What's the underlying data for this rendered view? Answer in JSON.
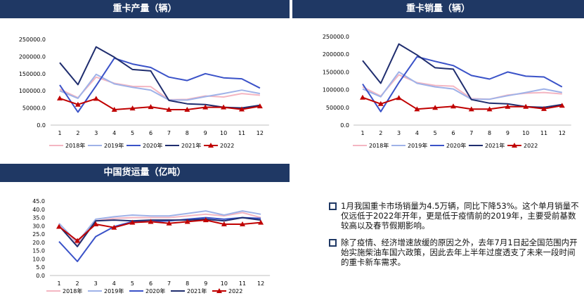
{
  "colors": {
    "2018年": "#f4b6c2",
    "2019年": "#9fb2e8",
    "2020年": "#3a52c8",
    "2021年": "#1f2d6e",
    "2022": "#c00000"
  },
  "chart_data": [
    {
      "type": "line",
      "title": "重卡产量（辆）",
      "categories": [
        "1",
        "2",
        "3",
        "4",
        "5",
        "6",
        "7",
        "8",
        "9",
        "10",
        "11",
        "12"
      ],
      "ylim": [
        0,
        250000
      ],
      "yticks": [
        "0.0",
        "50000.0",
        "100000.0",
        "150000.0",
        "200000.0",
        "250000.0"
      ],
      "series": [
        {
          "name": "2018年",
          "values": [
            105000,
            80000,
            140000,
            122000,
            113000,
            112000,
            74000,
            75000,
            85000,
            82000,
            92000,
            87000
          ]
        },
        {
          "name": "2019年",
          "values": [
            100000,
            78000,
            148000,
            120000,
            110000,
            102000,
            73000,
            73000,
            83000,
            92000,
            102000,
            92000
          ]
        },
        {
          "name": "2020年",
          "values": [
            117000,
            38000,
            115000,
            195000,
            178000,
            168000,
            140000,
            130000,
            150000,
            138000,
            135000,
            108000
          ]
        },
        {
          "name": "2021年",
          "values": [
            182000,
            118000,
            228000,
            198000,
            162000,
            158000,
            72000,
            62000,
            60000,
            52000,
            50000,
            58000
          ]
        },
        {
          "name": "2022",
          "values": [
            78000,
            60000,
            77000,
            45000,
            49000,
            53000,
            45000,
            45000,
            52000,
            52000,
            46000,
            55000
          ]
        }
      ]
    },
    {
      "type": "line",
      "title": "重卡销量（辆）",
      "categories": [
        "1",
        "2",
        "3",
        "4",
        "5",
        "6",
        "7",
        "8",
        "9",
        "10",
        "11",
        "12"
      ],
      "ylim": [
        0,
        250000
      ],
      "yticks": [
        "0.0",
        "50000.0",
        "100000.0",
        "150000.0",
        "200000.0",
        "250000.0"
      ],
      "series": [
        {
          "name": "2018年",
          "values": [
            108000,
            82000,
            142000,
            120000,
            112000,
            110000,
            75000,
            73000,
            85000,
            90000,
            92000,
            88000
          ]
        },
        {
          "name": "2019年",
          "values": [
            102000,
            80000,
            150000,
            118000,
            108000,
            102000,
            73000,
            73000,
            83000,
            92000,
            102000,
            92000
          ]
        },
        {
          "name": "2020年",
          "values": [
            116000,
            38000,
            120000,
            193000,
            180000,
            168000,
            140000,
            130000,
            150000,
            138000,
            136000,
            108000
          ]
        },
        {
          "name": "2021年",
          "values": [
            182000,
            118000,
            229000,
            198000,
            162000,
            158000,
            72000,
            62000,
            60000,
            52000,
            50000,
            58000
          ]
        },
        {
          "name": "2022",
          "values": [
            78000,
            60000,
            77000,
            45000,
            49000,
            53000,
            45000,
            45000,
            52000,
            52000,
            46000,
            55000
          ]
        }
      ]
    },
    {
      "type": "line",
      "title": "中国货运量（亿吨）",
      "categories": [
        "1",
        "2",
        "3",
        "4",
        "5",
        "6",
        "7",
        "8",
        "9",
        "10",
        "11",
        "12"
      ],
      "ylim": [
        0,
        45
      ],
      "yticks": [
        "0.0",
        "5.0",
        "10.0",
        "15.0",
        "20.0",
        "25.0",
        "30.0",
        "35.0",
        "40.0",
        "45.0"
      ],
      "series": [
        {
          "name": "2018年",
          "values": [
            31.5,
            19.0,
            33.0,
            34.5,
            35.0,
            35.0,
            35.0,
            36.0,
            37.0,
            36.0,
            38.0,
            35.0
          ]
        },
        {
          "name": "2019年",
          "values": [
            31.5,
            20.0,
            34.0,
            35.5,
            36.5,
            36.0,
            36.0,
            37.5,
            39.0,
            36.5,
            39.0,
            37.0
          ]
        },
        {
          "name": "2020年",
          "values": [
            20.5,
            8.5,
            23.5,
            29.5,
            32.5,
            32.5,
            33.0,
            34.0,
            35.0,
            34.0,
            35.0,
            34.5
          ]
        },
        {
          "name": "2021年",
          "values": [
            30.0,
            17.5,
            33.0,
            33.5,
            33.0,
            33.5,
            33.5,
            33.5,
            34.0,
            33.0,
            35.0,
            33.5
          ]
        },
        {
          "name": "2022",
          "values": [
            29.5,
            21.0,
            31.0,
            29.0,
            32.0,
            32.5,
            31.5,
            32.5,
            33.5,
            31.0,
            31.0,
            32.0
          ]
        }
      ]
    }
  ],
  "notes": [
    "1月我国重卡市场销量为4.5万辆，同比下降53%。这个单月销量不仅远低于2022年开年，更是低于疫情前的2019年，主要受前基数较高以及春节假期影响。",
    "除了疫情、经济增速放缓的原因之外，去年7月1日起全国范围内开始实施柴油车国六政策，因此去年上半年过度透支了未来一段时间的重卡新车需求。"
  ]
}
